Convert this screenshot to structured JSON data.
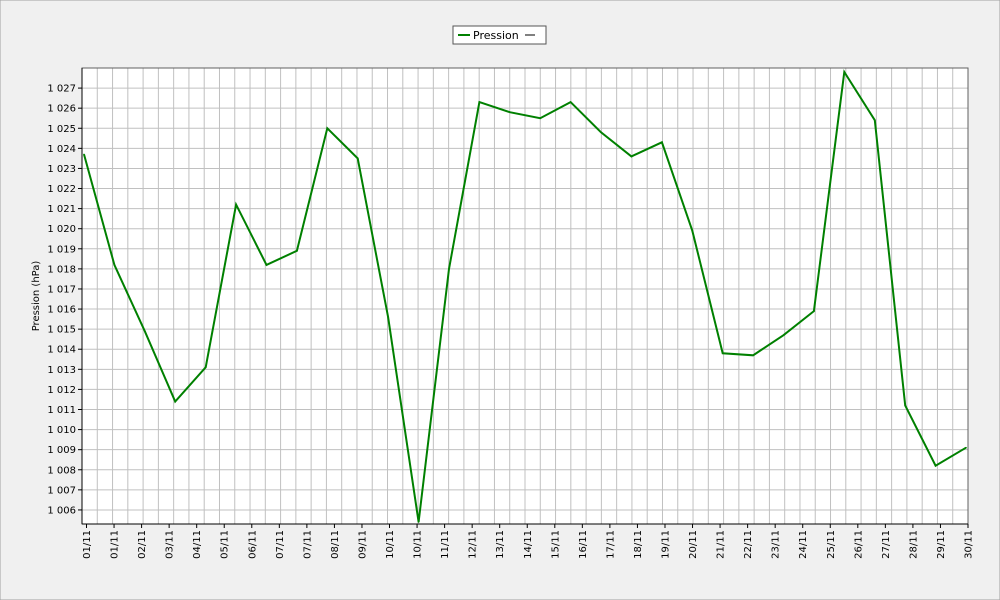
{
  "chart_data": {
    "type": "line",
    "title": "",
    "xlabel": "",
    "ylabel": "Pression (hPa)",
    "y_tick_labels": [
      "1 006",
      "1 007",
      "1 008",
      "1 009",
      "1 010",
      "1 011",
      "1 012",
      "1 013",
      "1 014",
      "1 015",
      "1 016",
      "1 017",
      "1 018",
      "1 019",
      "1 020",
      "1 021",
      "1 022",
      "1 023",
      "1 024",
      "1 025",
      "1 026",
      "1 027"
    ],
    "ylim": [
      1005.3,
      1028.0
    ],
    "grid": true,
    "legend_position": "top-center",
    "x_tick_labels": [
      "01/11",
      "01/11",
      "02/11",
      "03/11",
      "04/11",
      "05/11",
      "06/11",
      "07/11",
      "07/11",
      "08/11",
      "09/11",
      "10/11",
      "10/11",
      "11/11",
      "12/11",
      "13/11",
      "14/11",
      "15/11",
      "16/11",
      "17/11",
      "18/11",
      "19/11",
      "20/11",
      "21/11",
      "22/11",
      "23/11",
      "24/11",
      "25/11",
      "26/11",
      "27/11",
      "28/11",
      "29/11",
      "30/11"
    ],
    "series": [
      {
        "name": "Pression",
        "color": "#008000",
        "x": [
          "01/11",
          "02/11",
          "03/11",
          "04/11",
          "05/11",
          "06/11",
          "07/11",
          "08/11",
          "09/11",
          "10/11",
          "11/11",
          "12/11",
          "13/11",
          "14/11",
          "15/11",
          "16/11",
          "17/11",
          "18/11",
          "19/11",
          "20/11",
          "21/11",
          "22/11",
          "23/11",
          "24/11",
          "25/11",
          "26/11",
          "27/11",
          "28/11",
          "29/11",
          "30/11"
        ],
        "values": [
          1023.7,
          1018.2,
          1014.9,
          1011.4,
          1013.1,
          1021.2,
          1018.2,
          1018.9,
          1025.0,
          1023.5,
          1015.6,
          1005.4,
          1018.0,
          1026.3,
          1025.8,
          1025.5,
          1026.3,
          1024.8,
          1023.6,
          1024.3,
          1019.9,
          1013.8,
          1013.7,
          1014.7,
          1015.9,
          1027.8,
          1025.4,
          1011.2,
          1008.2,
          1009.1
        ]
      }
    ]
  }
}
